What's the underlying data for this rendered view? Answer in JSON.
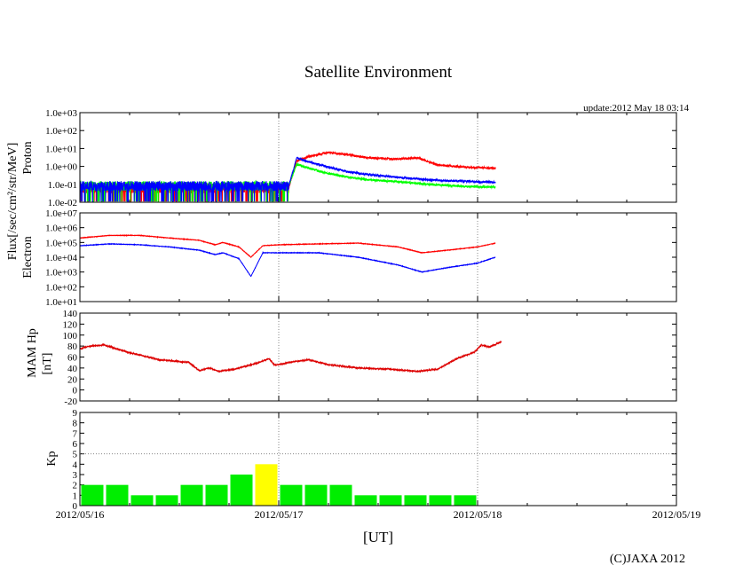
{
  "chart_data": [
    {
      "type": "line",
      "panel": "proton",
      "title": "Satellite Environment",
      "update_text": "update:2012 May 18 03:14",
      "ylabel": "Proton",
      "yscale": "log",
      "ylim": [
        0.01,
        1000
      ],
      "yticks": [
        "1.0e-02",
        "1.0e-01",
        "1.0e+00",
        "1.0e+01",
        "1.0e+02",
        "1.0e+03"
      ],
      "series": [
        {
          "name": "proton-high",
          "color": "#ff0000",
          "x": [
            0,
            1.05,
            1.09,
            1.15,
            1.25,
            1.35,
            1.45,
            1.6,
            1.7,
            1.8,
            1.95,
            2.09
          ],
          "y": [
            0.06,
            0.06,
            2.0,
            3.5,
            6.0,
            4.5,
            3.0,
            2.6,
            3.0,
            1.2,
            0.9,
            0.8
          ]
        },
        {
          "name": "proton-mid",
          "color": "#00ff00",
          "x": [
            0,
            1.05,
            1.09,
            1.15,
            1.25,
            1.35,
            1.45,
            1.6,
            1.75,
            1.9,
            2.09
          ],
          "y": [
            0.08,
            0.08,
            1.3,
            0.8,
            0.4,
            0.25,
            0.18,
            0.14,
            0.1,
            0.08,
            0.07
          ]
        },
        {
          "name": "proton-low",
          "color": "#0000ff",
          "x": [
            0,
            1.05,
            1.09,
            1.15,
            1.25,
            1.35,
            1.45,
            1.6,
            1.75,
            1.9,
            2.09
          ],
          "y": [
            0.08,
            0.08,
            3.0,
            1.8,
            0.9,
            0.5,
            0.35,
            0.25,
            0.18,
            0.15,
            0.13
          ]
        }
      ]
    },
    {
      "type": "line",
      "panel": "electron",
      "ylabel": "Electron",
      "yscale": "log",
      "ylim": [
        10,
        10000000
      ],
      "yticks": [
        "1.0e+01",
        "1.0e+02",
        "1.0e+03",
        "1.0e+04",
        "1.0e+05",
        "1.0e+06",
        "1.0e+07"
      ],
      "series": [
        {
          "name": "electron-high",
          "color": "#ff0000",
          "x": [
            0,
            0.15,
            0.3,
            0.45,
            0.6,
            0.68,
            0.72,
            0.8,
            0.86,
            0.92,
            1.0,
            1.2,
            1.4,
            1.6,
            1.72,
            1.85,
            2.0,
            2.09
          ],
          "y": [
            200000,
            300000,
            300000,
            200000,
            140000,
            70000,
            100000,
            50000,
            10000,
            60000,
            70000,
            80000,
            90000,
            50000,
            20000,
            30000,
            50000,
            90000
          ]
        },
        {
          "name": "electron-low",
          "color": "#0000ff",
          "x": [
            0,
            0.15,
            0.3,
            0.45,
            0.6,
            0.68,
            0.72,
            0.8,
            0.86,
            0.92,
            1.0,
            1.2,
            1.4,
            1.6,
            1.72,
            1.85,
            2.0,
            2.09
          ],
          "y": [
            60000,
            80000,
            70000,
            50000,
            30000,
            15000,
            20000,
            8000,
            500,
            20000,
            20000,
            20000,
            10000,
            3000,
            1000,
            2000,
            4000,
            10000
          ]
        }
      ]
    },
    {
      "type": "line",
      "panel": "magnetic",
      "ylabel": "MAM Hp",
      "yunit": "[nT]",
      "ylim": [
        -20,
        140
      ],
      "yticks": [
        "-20",
        "0",
        "20",
        "40",
        "60",
        "80",
        "100",
        "120",
        "140"
      ],
      "series": [
        {
          "name": "hp",
          "color": "#dd0000",
          "x": [
            0,
            0.05,
            0.12,
            0.25,
            0.4,
            0.55,
            0.6,
            0.65,
            0.7,
            0.78,
            0.9,
            0.95,
            0.98,
            1.05,
            1.15,
            1.25,
            1.4,
            1.55,
            1.7,
            1.8,
            1.9,
            1.98,
            2.02,
            2.06,
            2.12
          ],
          "y": [
            75,
            80,
            82,
            68,
            55,
            50,
            35,
            40,
            34,
            38,
            50,
            57,
            45,
            50,
            55,
            46,
            40,
            38,
            34,
            38,
            58,
            68,
            82,
            78,
            88
          ]
        }
      ]
    },
    {
      "type": "bar",
      "panel": "kp",
      "ylabel": "Kp",
      "ylim": [
        0,
        9
      ],
      "yticks": [
        "0",
        "1",
        "2",
        "3",
        "4",
        "5",
        "6",
        "7",
        "8",
        "9"
      ],
      "dashed_level": 5,
      "bars": [
        {
          "v": 2,
          "color": "#00ee00"
        },
        {
          "v": 2,
          "color": "#00ee00"
        },
        {
          "v": 1,
          "color": "#00ee00"
        },
        {
          "v": 1,
          "color": "#00ee00"
        },
        {
          "v": 2,
          "color": "#00ee00"
        },
        {
          "v": 2,
          "color": "#00ee00"
        },
        {
          "v": 3,
          "color": "#00ee00"
        },
        {
          "v": 4,
          "color": "#ffff00"
        },
        {
          "v": 2,
          "color": "#00ee00"
        },
        {
          "v": 2,
          "color": "#00ee00"
        },
        {
          "v": 2,
          "color": "#00ee00"
        },
        {
          "v": 1,
          "color": "#00ee00"
        },
        {
          "v": 1,
          "color": "#00ee00"
        },
        {
          "v": 1,
          "color": "#00ee00"
        },
        {
          "v": 1,
          "color": "#00ee00"
        },
        {
          "v": 1,
          "color": "#00ee00"
        }
      ]
    }
  ],
  "axis": {
    "shared_ylabel": "Flux[/sec/cm²/str/MeV]",
    "xticks": [
      "2012/05/16",
      "2012/05/17",
      "2012/05/18",
      "2012/05/19"
    ],
    "xlabel": "[UT]",
    "xlim_days": [
      0,
      3
    ]
  },
  "copyright": "(C)JAXA 2012"
}
